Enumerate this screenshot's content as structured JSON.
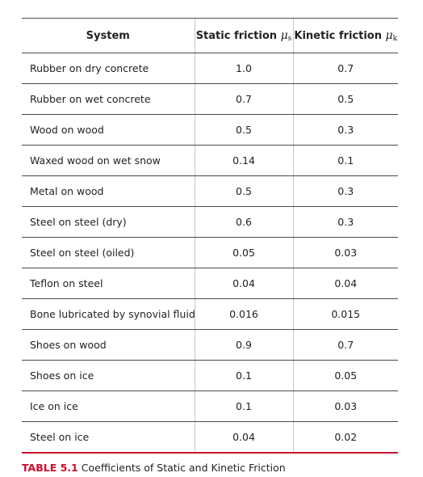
{
  "table": {
    "headers": {
      "system": "System",
      "static": "Static friction",
      "static_symbol": "μ",
      "static_sub": "s",
      "kinetic": "Kinetic friction",
      "kinetic_symbol": "μ",
      "kinetic_sub": "k"
    },
    "rows": [
      {
        "system": "Rubber on dry concrete",
        "static": "1.0",
        "kinetic": "0.7"
      },
      {
        "system": "Rubber on wet concrete",
        "static": "0.7",
        "kinetic": "0.5"
      },
      {
        "system": "Wood on wood",
        "static": "0.5",
        "kinetic": "0.3"
      },
      {
        "system": "Waxed wood on wet snow",
        "static": "0.14",
        "kinetic": "0.1"
      },
      {
        "system": "Metal on wood",
        "static": "0.5",
        "kinetic": "0.3"
      },
      {
        "system": "Steel on steel (dry)",
        "static": "0.6",
        "kinetic": "0.3"
      },
      {
        "system": "Steel on steel (oiled)",
        "static": "0.05",
        "kinetic": "0.03"
      },
      {
        "system": "Teflon on steel",
        "static": "0.04",
        "kinetic": "0.04"
      },
      {
        "system": "Bone lubricated by synovial fluid",
        "static": "0.016",
        "kinetic": "0.015"
      },
      {
        "system": "Shoes on wood",
        "static": "0.9",
        "kinetic": "0.7"
      },
      {
        "system": "Shoes on ice",
        "static": "0.1",
        "kinetic": "0.05"
      },
      {
        "system": "Ice on ice",
        "static": "0.1",
        "kinetic": "0.03"
      },
      {
        "system": "Steel on ice",
        "static": "0.04",
        "kinetic": "0.02"
      }
    ]
  },
  "caption": {
    "label": "TABLE 5.1",
    "text": "Coefficients of Static and Kinetic Friction"
  },
  "colors": {
    "accent": "#c8102e",
    "rule": "#4a4a4a",
    "divider": "#c8c8c8",
    "text": "#222222"
  }
}
